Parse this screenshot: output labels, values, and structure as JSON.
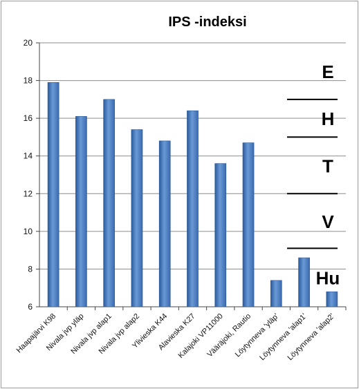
{
  "chart_data": {
    "type": "bar",
    "title": "IPS -indeksi",
    "xlabel": "",
    "ylabel": "",
    "ylim": [
      6,
      20
    ],
    "yticks": [
      6,
      8,
      10,
      12,
      14,
      16,
      18,
      20
    ],
    "grid": true,
    "categories": [
      "Haapajärvi K98",
      "Nivala jvp yläp",
      "Nivala jvp alap1",
      "Nivala jvp alap2",
      "Ylivieska K44",
      "Alavieska K27",
      "Kalajoki VP11000",
      "Vääräjoki, Rautio",
      "Löytynneva 'yläp'",
      "Löytynneva 'alap1'",
      "Löytynneva 'alap2'"
    ],
    "values": [
      17.9,
      16.1,
      17.0,
      15.4,
      14.8,
      16.4,
      13.6,
      14.7,
      7.4,
      8.6,
      6.8
    ],
    "bar_color": "#4a7fc1",
    "annotations": [
      {
        "label": "E",
        "y_from": 17.0,
        "y_to": 20
      },
      {
        "label": "H",
        "y_from": 15.0,
        "y_to": 17.0
      },
      {
        "label": "T",
        "y_from": 12.0,
        "y_to": 15.0
      },
      {
        "label": "V",
        "y_from": 9.1,
        "y_to": 12.0
      },
      {
        "label": "Hu",
        "y_from": 6,
        "y_to": 9.1
      }
    ]
  }
}
